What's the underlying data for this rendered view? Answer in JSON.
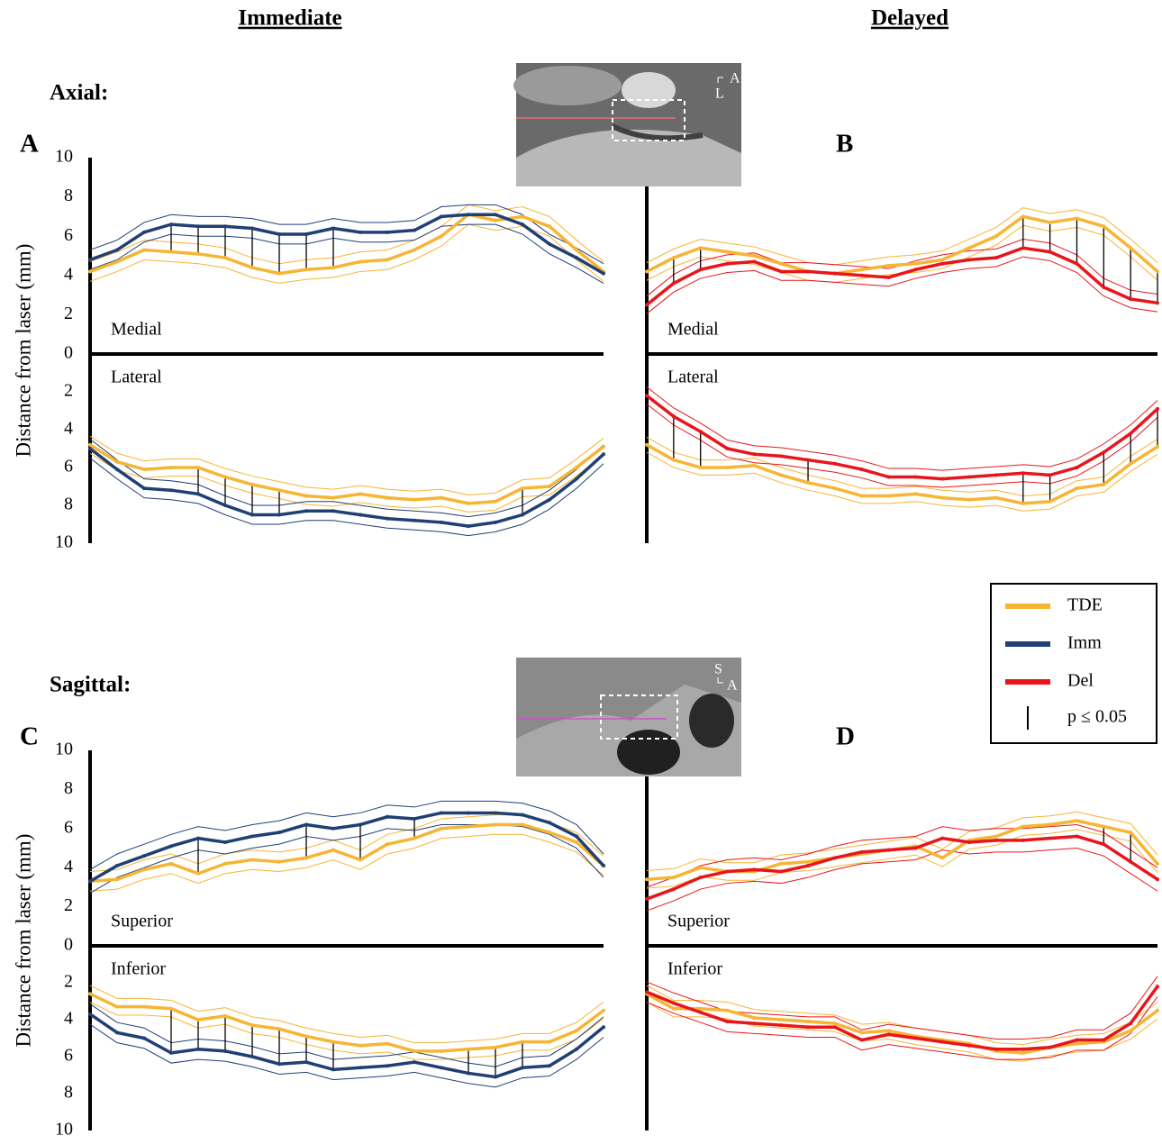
{
  "column_titles": [
    "Immediate",
    "Delayed"
  ],
  "row_titles": [
    "Axial:",
    "Sagittal:"
  ],
  "insets": [
    {
      "orientation": [
        "A",
        "L"
      ]
    },
    {
      "orientation": [
        "S",
        "A"
      ]
    }
  ],
  "legend": {
    "items": [
      {
        "name": "TDE",
        "color": "#f6b533"
      },
      {
        "name": "Imm",
        "color": "#1f3f75"
      },
      {
        "name": "Del",
        "color": "#e8151b"
      }
    ],
    "significance_label": "p ≤ 0.05"
  },
  "chart_data": [
    {
      "type": "line",
      "label": "A",
      "y_label": "Distance from laser (mm)",
      "upper": {
        "region": "Medial",
        "ylim": [
          0,
          10
        ],
        "yticks": [
          0,
          2,
          4,
          6,
          8,
          10
        ],
        "series": [
          {
            "color": "#f6b533",
            "ci": 0.5,
            "values": [
              4.2,
              4.7,
              5.3,
              5.2,
              5.1,
              4.9,
              4.4,
              4.1,
              4.3,
              4.4,
              4.7,
              4.8,
              5.3,
              6.0,
              7.1,
              6.8,
              7.0,
              6.5,
              5.3,
              4.2
            ]
          },
          {
            "color": "#1f3f75",
            "ci": 0.5,
            "values": [
              4.8,
              5.3,
              6.2,
              6.6,
              6.5,
              6.5,
              6.4,
              6.1,
              6.1,
              6.4,
              6.2,
              6.2,
              6.3,
              7.0,
              7.1,
              7.1,
              6.6,
              5.6,
              4.9,
              4.1
            ]
          }
        ],
        "significant": [
          3,
          4,
          5,
          6,
          7,
          8,
          9
        ]
      },
      "lower": {
        "region": "Lateral",
        "ylim": [
          0,
          10
        ],
        "yticks": [
          2,
          4,
          6,
          8,
          10
        ],
        "series": [
          {
            "color": "#f6b533",
            "ci": 0.45,
            "values": [
              4.8,
              5.7,
              6.1,
              6.0,
              6.0,
              6.5,
              6.9,
              7.2,
              7.5,
              7.6,
              7.4,
              7.6,
              7.7,
              7.6,
              7.9,
              7.8,
              7.1,
              7.0,
              6.0,
              4.9
            ]
          },
          {
            "color": "#1f3f75",
            "ci": 0.5,
            "values": [
              5.0,
              6.1,
              7.1,
              7.2,
              7.4,
              8.0,
              8.5,
              8.5,
              8.3,
              8.3,
              8.5,
              8.7,
              8.8,
              8.9,
              9.1,
              8.9,
              8.5,
              7.7,
              6.6,
              5.3
            ]
          }
        ],
        "significant": [
          4,
          5,
          6,
          7,
          16
        ]
      }
    },
    {
      "type": "line",
      "label": "B",
      "upper": {
        "region": "Medial",
        "ylim": [
          0,
          10
        ],
        "series": [
          {
            "color": "#f6b533",
            "ci": 0.45,
            "values": [
              4.2,
              4.9,
              5.4,
              5.2,
              5.0,
              4.6,
              4.2,
              4.1,
              4.3,
              4.5,
              4.6,
              4.8,
              5.4,
              6.0,
              7.0,
              6.7,
              6.9,
              6.5,
              5.4,
              4.2
            ]
          },
          {
            "color": "#e8151b",
            "ci": 0.45,
            "values": [
              2.5,
              3.6,
              4.3,
              4.6,
              4.7,
              4.2,
              4.2,
              4.1,
              4.0,
              3.9,
              4.3,
              4.6,
              4.8,
              4.9,
              5.4,
              5.2,
              4.6,
              3.4,
              2.8,
              2.6
            ]
          }
        ],
        "significant": [
          1,
          2,
          14,
          15,
          16,
          17,
          18,
          19
        ]
      },
      "lower": {
        "region": "Lateral",
        "ylim": [
          0,
          10
        ],
        "series": [
          {
            "color": "#f6b533",
            "ci": 0.4,
            "values": [
              4.8,
              5.6,
              6.0,
              6.0,
              5.9,
              6.4,
              6.8,
              7.1,
              7.5,
              7.5,
              7.4,
              7.6,
              7.7,
              7.6,
              7.9,
              7.8,
              7.1,
              6.9,
              5.8,
              4.9
            ]
          },
          {
            "color": "#e8151b",
            "ci": 0.45,
            "values": [
              2.2,
              3.3,
              4.1,
              5.0,
              5.3,
              5.4,
              5.6,
              5.8,
              6.1,
              6.5,
              6.5,
              6.6,
              6.5,
              6.4,
              6.3,
              6.4,
              6.0,
              5.2,
              4.2,
              2.9
            ]
          }
        ],
        "significant": [
          1,
          2,
          6,
          14,
          15,
          17,
          18,
          19
        ]
      }
    },
    {
      "type": "line",
      "label": "C",
      "y_label": "Distance from laser (mm)",
      "upper": {
        "region": "Superior",
        "ylim": [
          0,
          10
        ],
        "yticks": [
          0,
          2,
          4,
          6,
          8,
          10
        ],
        "series": [
          {
            "color": "#f6b533",
            "ci": 0.5,
            "values": [
              3.3,
              3.4,
              3.9,
              4.2,
              3.7,
              4.2,
              4.4,
              4.3,
              4.5,
              4.9,
              4.4,
              5.2,
              5.5,
              6.0,
              6.1,
              6.2,
              6.2,
              5.8,
              5.3,
              4.1
            ]
          },
          {
            "color": "#1f3f75",
            "ci": 0.6,
            "values": [
              3.3,
              4.1,
              4.6,
              5.1,
              5.5,
              5.3,
              5.6,
              5.8,
              6.2,
              6.0,
              6.2,
              6.6,
              6.5,
              6.8,
              6.8,
              6.8,
              6.7,
              6.3,
              5.6,
              4.1
            ]
          }
        ],
        "significant": [
          4,
          8,
          10,
          12
        ]
      },
      "lower": {
        "region": "Inferior",
        "ylim": [
          0,
          10
        ],
        "yticks": [
          2,
          4,
          6,
          8,
          10
        ],
        "series": [
          {
            "color": "#f6b533",
            "ci": 0.45,
            "values": [
              2.6,
              3.3,
              3.3,
              3.4,
              4.0,
              3.8,
              4.3,
              4.5,
              4.9,
              5.2,
              5.4,
              5.3,
              5.7,
              5.7,
              5.6,
              5.5,
              5.2,
              5.2,
              4.6,
              3.5
            ]
          },
          {
            "color": "#1f3f75",
            "ci": 0.55,
            "values": [
              3.7,
              4.7,
              5.0,
              5.8,
              5.6,
              5.7,
              6.0,
              6.4,
              6.3,
              6.7,
              6.6,
              6.5,
              6.3,
              6.6,
              6.9,
              7.1,
              6.6,
              6.5,
              5.6,
              4.4
            ]
          }
        ],
        "significant": [
          3,
          4,
          5,
          6,
          7,
          8,
          9,
          14,
          15,
          16
        ]
      }
    },
    {
      "type": "line",
      "label": "D",
      "upper": {
        "region": "Superior",
        "ylim": [
          0,
          10
        ],
        "series": [
          {
            "color": "#f6b533",
            "ci": 0.45,
            "values": [
              3.4,
              3.5,
              4.0,
              3.8,
              3.8,
              4.2,
              4.3,
              4.5,
              4.7,
              4.9,
              5.1,
              4.5,
              5.4,
              5.6,
              6.1,
              6.2,
              6.4,
              6.1,
              5.8,
              4.2
            ]
          },
          {
            "color": "#e8151b",
            "ci": 0.6,
            "values": [
              2.4,
              2.9,
              3.5,
              3.8,
              3.9,
              3.8,
              4.1,
              4.5,
              4.8,
              4.9,
              5.0,
              5.5,
              5.3,
              5.4,
              5.4,
              5.5,
              5.6,
              5.2,
              4.3,
              3.4
            ]
          }
        ],
        "significant": [
          17,
          18
        ]
      },
      "lower": {
        "region": "Inferior",
        "ylim": [
          0,
          10
        ],
        "series": [
          {
            "color": "#f6b533",
            "ci": 0.45,
            "values": [
              2.6,
              3.4,
              3.4,
              3.5,
              3.9,
              4.0,
              4.1,
              4.2,
              4.7,
              4.6,
              4.9,
              5.1,
              5.3,
              5.7,
              5.8,
              5.5,
              5.3,
              5.2,
              4.6,
              3.5
            ]
          },
          {
            "color": "#e8151b",
            "ci": 0.55,
            "values": [
              2.5,
              3.1,
              3.6,
              4.1,
              4.2,
              4.3,
              4.4,
              4.4,
              5.1,
              4.8,
              5.0,
              5.2,
              5.4,
              5.6,
              5.6,
              5.5,
              5.1,
              5.1,
              4.2,
              2.2
            ]
          }
        ],
        "significant": []
      }
    }
  ]
}
